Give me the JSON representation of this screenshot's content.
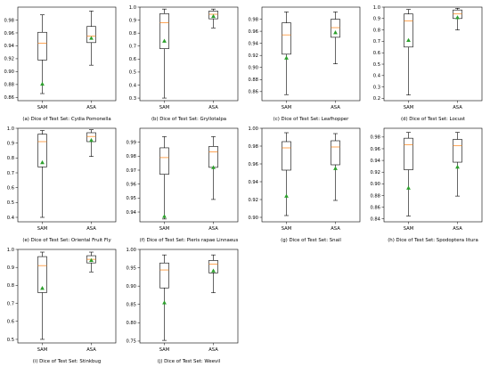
{
  "figure": {
    "colors": {
      "box": "#000000",
      "median": "#ff7f0e",
      "mean": "#2ca02c"
    },
    "chart_data": [
      {
        "type": "box",
        "caption": "(a) Dice of Test Set: Cydia Pomonella",
        "categories": [
          "SAM",
          "ASA"
        ],
        "ylim": [
          0.855,
          1.0
        ],
        "yticks": [
          "0.86",
          "0.88",
          "0.90",
          "0.92",
          "0.94",
          "0.96",
          "0.98"
        ],
        "series": [
          {
            "min": 0.866,
            "q1": 0.918,
            "median": 0.944,
            "q3": 0.961,
            "max": 0.988,
            "mean": 0.881
          },
          {
            "min": 0.91,
            "q1": 0.945,
            "median": 0.955,
            "q3": 0.97,
            "max": 0.994,
            "mean": 0.952
          }
        ]
      },
      {
        "type": "box",
        "caption": "(b) Dice of Test Set: Gryllotalpa",
        "categories": [
          "SAM",
          "ASA"
        ],
        "ylim": [
          0.28,
          1.0
        ],
        "yticks": [
          "0.3",
          "0.4",
          "0.5",
          "0.6",
          "0.7",
          "0.8",
          "0.9",
          "1.0"
        ],
        "series": [
          {
            "min": 0.3,
            "q1": 0.68,
            "median": 0.88,
            "q3": 0.95,
            "max": 0.985,
            "mean": 0.74
          },
          {
            "min": 0.84,
            "q1": 0.91,
            "median": 0.945,
            "q3": 0.97,
            "max": 0.985,
            "mean": 0.93
          }
        ]
      },
      {
        "type": "box",
        "caption": "(c) Dice of Test Set: Leafhopper",
        "categories": [
          "SAM",
          "ASA"
        ],
        "ylim": [
          0.845,
          1.0
        ],
        "yticks": [
          "0.86",
          "0.88",
          "0.90",
          "0.92",
          "0.94",
          "0.96",
          "0.98"
        ],
        "series": [
          {
            "min": 0.855,
            "q1": 0.922,
            "median": 0.954,
            "q3": 0.974,
            "max": 0.992,
            "mean": 0.916
          },
          {
            "min": 0.906,
            "q1": 0.95,
            "median": 0.966,
            "q3": 0.98,
            "max": 0.992,
            "mean": 0.958
          }
        ]
      },
      {
        "type": "box",
        "caption": "(d) Dice of Test Set: Locust",
        "categories": [
          "SAM",
          "ASA"
        ],
        "ylim": [
          0.18,
          1.0
        ],
        "yticks": [
          "0.2",
          "0.3",
          "0.4",
          "0.5",
          "0.6",
          "0.7",
          "0.8",
          "0.9",
          "1.0"
        ],
        "series": [
          {
            "min": 0.23,
            "q1": 0.65,
            "median": 0.88,
            "q3": 0.94,
            "max": 0.98,
            "mean": 0.71
          },
          {
            "min": 0.8,
            "q1": 0.9,
            "median": 0.94,
            "q3": 0.975,
            "max": 0.99,
            "mean": 0.91
          }
        ]
      },
      {
        "type": "box",
        "caption": "(e) Dice of Test Set: Oriental Fruit Fly",
        "categories": [
          "SAM",
          "ASA"
        ],
        "ylim": [
          0.37,
          1.0
        ],
        "yticks": [
          "0.4",
          "0.5",
          "0.6",
          "0.7",
          "0.8",
          "0.9",
          "1.0"
        ],
        "series": [
          {
            "min": 0.4,
            "q1": 0.74,
            "median": 0.91,
            "q3": 0.96,
            "max": 0.985,
            "mean": 0.77
          },
          {
            "min": 0.81,
            "q1": 0.91,
            "median": 0.945,
            "q3": 0.97,
            "max": 0.99,
            "mean": 0.92
          }
        ]
      },
      {
        "type": "box",
        "caption": "(f) Dice of Test Set: Pieris rapae Linnaeus",
        "categories": [
          "SAM",
          "ASA"
        ],
        "ylim": [
          0.933,
          1.0
        ],
        "yticks": [
          "0.94",
          "0.95",
          "0.96",
          "0.97",
          "0.98",
          "0.99"
        ],
        "series": [
          {
            "min": 0.935,
            "q1": 0.967,
            "median": 0.979,
            "q3": 0.986,
            "max": 0.994,
            "mean": 0.937
          },
          {
            "min": 0.949,
            "q1": 0.972,
            "median": 0.983,
            "q3": 0.987,
            "max": 0.994,
            "mean": 0.972
          }
        ]
      },
      {
        "type": "box",
        "caption": "(g) Dice of Test Set: Snail",
        "categories": [
          "SAM",
          "ASA"
        ],
        "ylim": [
          0.895,
          1.0
        ],
        "yticks": [
          "0.90",
          "0.92",
          "0.94",
          "0.96",
          "0.98",
          "1.00"
        ],
        "series": [
          {
            "min": 0.902,
            "q1": 0.953,
            "median": 0.978,
            "q3": 0.985,
            "max": 0.995,
            "mean": 0.924
          },
          {
            "min": 0.919,
            "q1": 0.959,
            "median": 0.979,
            "q3": 0.986,
            "max": 0.994,
            "mean": 0.955
          }
        ]
      },
      {
        "type": "box",
        "caption": "(h) Dice of Test Set: Spodoptera litura",
        "categories": [
          "SAM",
          "ASA"
        ],
        "ylim": [
          0.835,
          0.995
        ],
        "yticks": [
          "0.84",
          "0.86",
          "0.88",
          "0.90",
          "0.92",
          "0.94",
          "0.96",
          "0.98"
        ],
        "series": [
          {
            "min": 0.845,
            "q1": 0.924,
            "median": 0.967,
            "q3": 0.978,
            "max": 0.988,
            "mean": 0.893
          },
          {
            "min": 0.879,
            "q1": 0.937,
            "median": 0.965,
            "q3": 0.976,
            "max": 0.988,
            "mean": 0.929
          }
        ]
      },
      {
        "type": "box",
        "caption": "(i) Dice of Test Set: Stinkbug",
        "categories": [
          "SAM",
          "ASA"
        ],
        "ylim": [
          0.48,
          1.0
        ],
        "yticks": [
          "0.5",
          "0.6",
          "0.7",
          "0.8",
          "0.9",
          "1.0"
        ],
        "series": [
          {
            "min": 0.5,
            "q1": 0.76,
            "median": 0.91,
            "q3": 0.96,
            "max": 0.985,
            "mean": 0.785
          },
          {
            "min": 0.875,
            "q1": 0.925,
            "median": 0.945,
            "q3": 0.965,
            "max": 0.985,
            "mean": 0.94
          }
        ]
      },
      {
        "type": "box",
        "caption": "(j) Dice of Test Set: Weevil",
        "categories": [
          "SAM",
          "ASA"
        ],
        "ylim": [
          0.745,
          1.0
        ],
        "yticks": [
          "0.75",
          "0.80",
          "0.85",
          "0.90",
          "0.95",
          "1.00"
        ],
        "series": [
          {
            "min": 0.752,
            "q1": 0.895,
            "median": 0.944,
            "q3": 0.963,
            "max": 0.985,
            "mean": 0.855
          },
          {
            "min": 0.882,
            "q1": 0.936,
            "median": 0.96,
            "q3": 0.97,
            "max": 0.985,
            "mean": 0.942
          }
        ]
      }
    ]
  }
}
